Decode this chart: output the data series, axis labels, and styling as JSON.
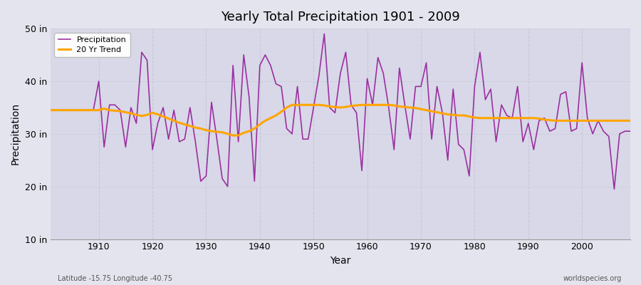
{
  "title": "Yearly Total Precipitation 1901 - 2009",
  "xlabel": "Year",
  "ylabel": "Precipitation",
  "xlim": [
    1901,
    2009
  ],
  "ylim": [
    10,
    50
  ],
  "yticks": [
    10,
    20,
    30,
    40,
    50
  ],
  "ytick_labels": [
    "10 in",
    "20 in",
    "30 in",
    "40 in",
    "50 in"
  ],
  "xticks": [
    1910,
    1920,
    1930,
    1940,
    1950,
    1960,
    1970,
    1980,
    1990,
    2000
  ],
  "precip_color": "#9B30A0",
  "trend_color": "#FFA500",
  "bg_color": "#E4E4EE",
  "plot_bg_color": "#D8D8E8",
  "grid_color": "#C8C8D8",
  "footer_left": "Latitude -15.75 Longitude -40.75",
  "footer_right": "worldspecies.org",
  "legend_labels": [
    "Precipitation",
    "20 Yr Trend"
  ],
  "years": [
    1901,
    1902,
    1903,
    1904,
    1905,
    1906,
    1907,
    1908,
    1909,
    1910,
    1911,
    1912,
    1913,
    1914,
    1915,
    1916,
    1917,
    1918,
    1919,
    1920,
    1921,
    1922,
    1923,
    1924,
    1925,
    1926,
    1927,
    1928,
    1929,
    1930,
    1931,
    1932,
    1933,
    1934,
    1935,
    1936,
    1937,
    1938,
    1939,
    1940,
    1941,
    1942,
    1943,
    1944,
    1945,
    1946,
    1947,
    1948,
    1949,
    1950,
    1951,
    1952,
    1953,
    1954,
    1955,
    1956,
    1957,
    1958,
    1959,
    1960,
    1961,
    1962,
    1963,
    1964,
    1965,
    1966,
    1967,
    1968,
    1969,
    1970,
    1971,
    1972,
    1973,
    1974,
    1975,
    1976,
    1977,
    1978,
    1979,
    1980,
    1981,
    1982,
    1983,
    1984,
    1985,
    1986,
    1987,
    1988,
    1989,
    1990,
    1991,
    1992,
    1993,
    1994,
    1995,
    1996,
    1997,
    1998,
    1999,
    2000,
    2001,
    2002,
    2003,
    2004,
    2005,
    2006,
    2007,
    2008,
    2009
  ],
  "precip": [
    34.5,
    34.5,
    34.5,
    34.5,
    34.5,
    34.5,
    34.5,
    34.5,
    34.5,
    40.0,
    27.5,
    35.5,
    35.5,
    34.5,
    27.5,
    35.0,
    32.0,
    45.5,
    44.0,
    27.0,
    32.0,
    35.0,
    29.0,
    34.5,
    28.5,
    29.0,
    35.0,
    28.5,
    21.0,
    22.0,
    36.0,
    29.0,
    21.5,
    20.0,
    43.0,
    28.5,
    45.0,
    37.0,
    21.0,
    43.0,
    45.0,
    43.0,
    39.5,
    39.0,
    31.0,
    30.0,
    39.0,
    29.0,
    29.0,
    35.0,
    41.0,
    49.0,
    35.0,
    34.0,
    41.5,
    45.5,
    35.5,
    34.0,
    23.0,
    40.5,
    35.5,
    44.5,
    41.5,
    35.0,
    27.0,
    42.5,
    35.5,
    29.0,
    39.0,
    39.0,
    43.5,
    29.0,
    39.0,
    34.0,
    25.0,
    38.5,
    28.0,
    27.0,
    22.0,
    39.0,
    45.5,
    36.5,
    38.5,
    28.5,
    35.5,
    33.5,
    33.0,
    39.0,
    28.5,
    32.0,
    27.0,
    32.5,
    33.0,
    30.5,
    31.0,
    37.5,
    38.0,
    30.5,
    31.0,
    43.5,
    33.0,
    30.0,
    32.5,
    30.5,
    29.5,
    19.5,
    30.0,
    30.5,
    30.5
  ],
  "trend": [
    34.5,
    34.5,
    34.5,
    34.5,
    34.5,
    34.5,
    34.5,
    34.5,
    34.5,
    34.5,
    34.8,
    34.5,
    34.4,
    34.3,
    34.1,
    33.9,
    33.6,
    33.4,
    33.6,
    34.0,
    33.7,
    33.3,
    32.9,
    32.5,
    32.1,
    31.8,
    31.5,
    31.2,
    31.0,
    30.7,
    30.5,
    30.4,
    30.3,
    30.0,
    29.7,
    29.7,
    30.2,
    30.5,
    31.0,
    31.8,
    32.5,
    33.0,
    33.5,
    34.2,
    35.0,
    35.5,
    35.5,
    35.5,
    35.5,
    35.5,
    35.5,
    35.4,
    35.2,
    35.1,
    35.0,
    35.1,
    35.3,
    35.4,
    35.5,
    35.5,
    35.5,
    35.5,
    35.5,
    35.5,
    35.4,
    35.2,
    35.1,
    35.0,
    34.9,
    34.7,
    34.5,
    34.3,
    34.1,
    33.9,
    33.7,
    33.6,
    33.5,
    33.5,
    33.3,
    33.1,
    33.0,
    33.0,
    33.0,
    33.0,
    33.0,
    33.0,
    33.0,
    33.0,
    33.0,
    33.0,
    33.0,
    32.9,
    32.7,
    32.6,
    32.5,
    32.5,
    32.5,
    32.5,
    32.5,
    32.5,
    32.5,
    32.5,
    32.5,
    32.5,
    32.5,
    32.5,
    32.5,
    32.5,
    32.5
  ]
}
